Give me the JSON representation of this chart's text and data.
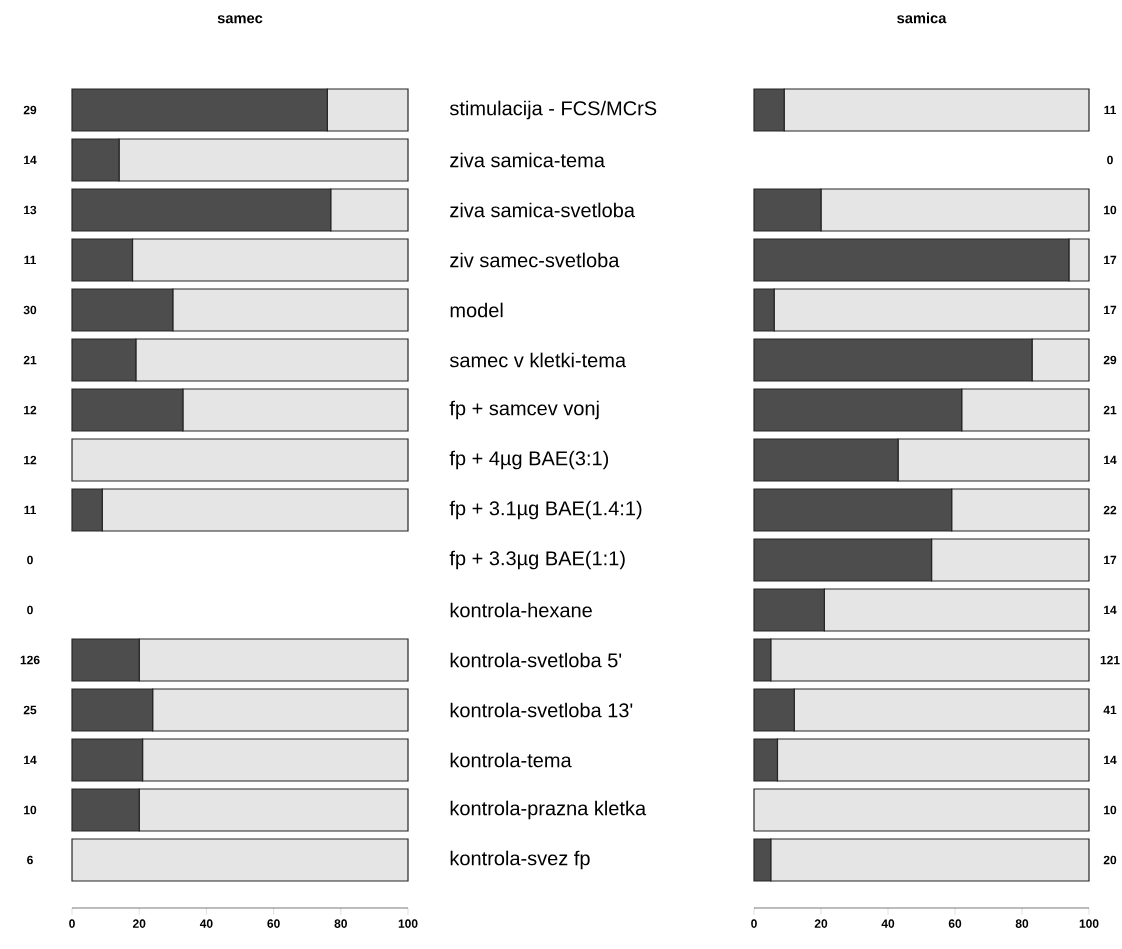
{
  "chart_data": [
    {
      "type": "bar",
      "title": "samec",
      "orientation": "horizontal",
      "stacked": true,
      "categories": [
        "stimulacija - FCS/MCrS",
        "ziva samica-tema",
        "ziva samica-svetloba",
        "ziv samec-svetloba",
        "model",
        "samec v kletki-tema",
        "fp + samcev vonj",
        "fp + 4µg BAE(3:1)",
        "fp + 3.1µg BAE(1.4:1)",
        "fp + 3.3µg BAE(1:1)",
        "kontrola-hexane",
        "kontrola-svetloba 5'",
        "kontrola-svetloba 13'",
        "kontrola-tema",
        "kontrola-prazna kletka",
        "kontrola-svez fp"
      ],
      "series": [
        {
          "color": "#4d4d4d",
          "values": [
            76,
            14,
            77,
            18,
            30,
            19,
            33,
            0,
            9,
            null,
            null,
            20,
            24,
            21,
            20,
            0
          ]
        },
        {
          "color": "#e5e5e5",
          "values": [
            24,
            86,
            23,
            82,
            70,
            81,
            67,
            100,
            91,
            null,
            null,
            80,
            76,
            79,
            80,
            100
          ]
        }
      ],
      "xlim": [
        0,
        100
      ],
      "xticks": [
        0,
        20,
        40,
        60,
        80,
        100
      ],
      "annotations": [
        "29",
        "14",
        "13",
        "11",
        "30",
        "21",
        "12",
        "12",
        "11",
        "0",
        "0",
        "126",
        "25",
        "14",
        "10",
        "6"
      ]
    },
    {
      "type": "bar",
      "title": "samica",
      "orientation": "horizontal",
      "stacked": true,
      "tick_labels": "x",
      "categories": [
        null,
        null,
        null,
        null,
        null,
        null,
        null,
        null,
        null,
        null,
        null,
        null,
        null,
        null,
        null,
        null
      ],
      "series": [
        {
          "color": "#4d4d4d",
          "values": [
            9,
            null,
            20,
            94,
            6,
            83,
            62,
            43,
            59,
            53,
            21,
            5,
            12,
            7,
            0,
            5
          ]
        },
        {
          "color": "#e5e5e5",
          "values": [
            91,
            null,
            80,
            6,
            94,
            17,
            38,
            57,
            41,
            47,
            79,
            95,
            88,
            93,
            100,
            95
          ]
        }
      ],
      "xlim": [
        0,
        100
      ],
      "xticks": [
        0,
        20,
        40,
        60,
        80,
        100
      ],
      "annotations": [
        "11",
        "0",
        "10",
        "17",
        "17",
        "29",
        "21",
        "14",
        "22",
        "17",
        "14",
        "121",
        "41",
        "14",
        "10",
        "20"
      ]
    }
  ]
}
